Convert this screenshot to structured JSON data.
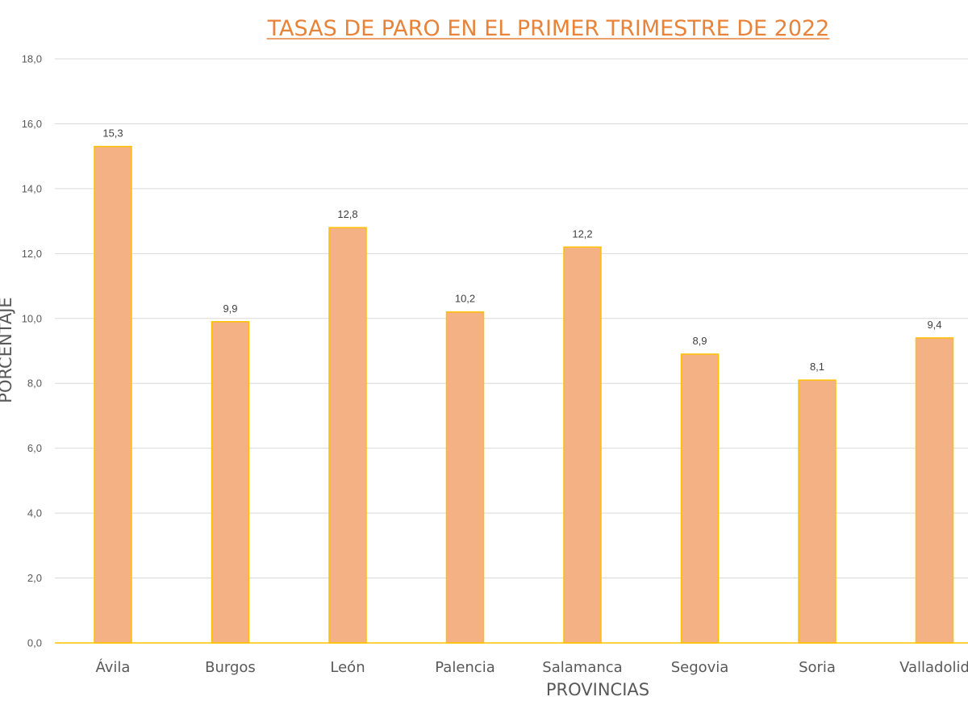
{
  "chart_data": {
    "type": "bar",
    "title": "TASAS DE PARO EN EL PRIMER TRIMESTRE DE 2022",
    "xlabel": "PROVINCIAS",
    "ylabel": "PORCENTAJE",
    "categories": [
      "Ávila",
      "Burgos",
      "León",
      "Palencia",
      "Salamanca",
      "Segovia",
      "Soria",
      "Valladolid"
    ],
    "values": [
      15.3,
      9.9,
      12.8,
      10.2,
      12.2,
      8.9,
      8.1,
      9.4
    ],
    "value_labels": [
      "15,3",
      "9,9",
      "12,8",
      "10,2",
      "12,2",
      "8,9",
      "8,1",
      "9,4"
    ],
    "ylim": [
      0,
      18
    ],
    "yticks": [
      0,
      2,
      4,
      6,
      8,
      10,
      12,
      14,
      16,
      18
    ],
    "ytick_labels": [
      "0,0",
      "2,0",
      "4,0",
      "6,0",
      "8,0",
      "10,0",
      "12,0",
      "14,0",
      "16,0",
      "18,0"
    ],
    "grid": true,
    "legend": "none",
    "colors": {
      "bar_fill": "#F4B183",
      "bar_stroke": "#FFC000",
      "title": "#E8833A",
      "gridline": "#D9D9D9",
      "axis_line": "#FFC000"
    }
  }
}
